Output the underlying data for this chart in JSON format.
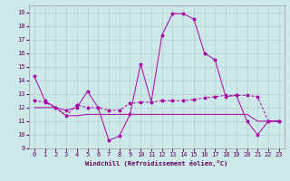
{
  "xlabel": "Windchill (Refroidissement éolien,°C)",
  "background_color": "#cce8e8",
  "grid_color": "#b0c8c8",
  "line_color": "#aa00aa",
  "xlim": [
    -0.5,
    23.5
  ],
  "ylim": [
    9,
    19.5
  ],
  "yticks": [
    9,
    10,
    11,
    12,
    13,
    14,
    15,
    16,
    17,
    18,
    19
  ],
  "xticks": [
    0,
    1,
    2,
    3,
    4,
    5,
    6,
    7,
    8,
    9,
    10,
    11,
    12,
    13,
    14,
    15,
    16,
    17,
    18,
    19,
    20,
    21,
    22,
    23
  ],
  "series1_x": [
    0,
    1,
    2,
    3,
    4,
    5,
    6,
    7,
    8,
    9,
    10,
    11,
    12,
    13,
    14,
    15,
    16,
    17,
    18,
    19,
    20,
    21,
    22,
    23
  ],
  "series1_y": [
    14.3,
    12.5,
    12.0,
    11.8,
    12.0,
    13.2,
    12.0,
    9.6,
    9.9,
    11.5,
    15.2,
    12.4,
    17.3,
    18.9,
    18.9,
    18.5,
    16.0,
    15.5,
    12.8,
    12.9,
    11.0,
    10.0,
    11.0,
    11.0
  ],
  "series2_x": [
    0,
    1,
    2,
    3,
    4,
    5,
    6,
    7,
    8,
    9,
    10,
    11,
    12,
    13,
    14,
    15,
    16,
    17,
    18,
    19,
    20,
    21,
    22,
    23
  ],
  "series2_y": [
    12.5,
    12.4,
    12.0,
    11.4,
    12.2,
    12.0,
    12.0,
    11.8,
    11.8,
    12.3,
    12.4,
    12.4,
    12.5,
    12.5,
    12.5,
    12.6,
    12.7,
    12.8,
    12.9,
    12.9,
    12.9,
    12.8,
    11.0,
    11.0
  ],
  "series3_x": [
    0,
    1,
    2,
    3,
    4,
    5,
    6,
    7,
    8,
    9,
    10,
    11,
    12,
    13,
    14,
    15,
    16,
    17,
    18,
    19,
    20,
    21,
    22,
    23
  ],
  "series3_y": [
    12.0,
    12.0,
    12.0,
    11.4,
    11.4,
    11.5,
    11.5,
    11.5,
    11.5,
    11.5,
    11.5,
    11.5,
    11.5,
    11.5,
    11.5,
    11.5,
    11.5,
    11.5,
    11.5,
    11.5,
    11.5,
    11.0,
    11.0,
    11.0
  ],
  "tick_fontsize": 5,
  "xlabel_fontsize": 5,
  "marker_size": 2.5
}
